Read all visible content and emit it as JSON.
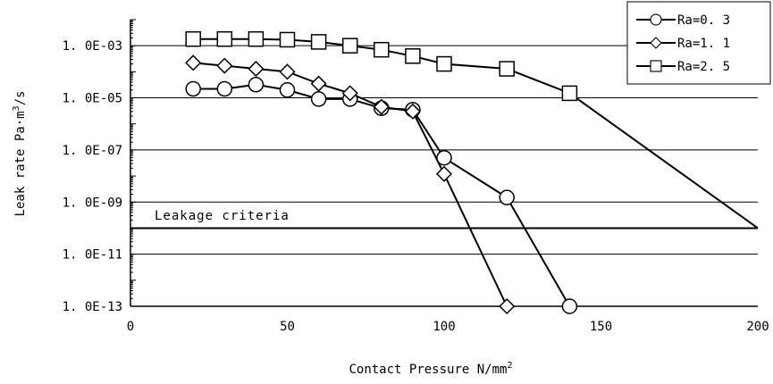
{
  "chart_data": {
    "type": "line",
    "title": "",
    "xlabel": "Contact Pressure N/mm",
    "xlabel_sup": "2",
    "ylabel": "Leak rate Pa·m",
    "ylabel_sup": "3",
    "ylabel_suffix": "/s",
    "y_scale": "log",
    "xlim": [
      0,
      200
    ],
    "ylim": [
      1e-13,
      0.01
    ],
    "x_ticks": [
      0,
      50,
      100,
      150,
      200
    ],
    "x_tick_labels": [
      "0",
      "50",
      "100",
      "150",
      "200"
    ],
    "y_ticks": [
      0.001,
      1e-05,
      1e-07,
      1e-09,
      1e-11,
      1e-13
    ],
    "y_tick_labels": [
      "1. 0E-03",
      "1. 0E-05",
      "1. 0E-07",
      "1. 0E-09",
      "1. 0E-11",
      "1. 0E-13"
    ],
    "grid": "horizontal at y ticks",
    "legend_position": "top-right",
    "series": [
      {
        "name": "Ra=0. 3",
        "marker": "circle",
        "x": [
          20,
          30,
          40,
          50,
          60,
          70,
          80,
          90,
          100,
          120,
          140
        ],
        "y": [
          2.2e-05,
          2.2e-05,
          3.2e-05,
          2e-05,
          9e-06,
          9e-06,
          4e-06,
          3.5e-06,
          5e-08,
          1.5e-09,
          1e-13
        ]
      },
      {
        "name": "Ra=1. 1",
        "marker": "diamond",
        "x": [
          20,
          30,
          40,
          50,
          60,
          70,
          80,
          90,
          100,
          120
        ],
        "y": [
          0.00022,
          0.00017,
          0.00013,
          0.0001,
          3.5e-05,
          1.5e-05,
          4.5e-06,
          3e-06,
          1.2e-08,
          1e-13
        ]
      },
      {
        "name": "Ra=2. 5",
        "marker": "square",
        "x": [
          20,
          30,
          40,
          50,
          60,
          70,
          80,
          90,
          100,
          120,
          140,
          200
        ],
        "y": [
          0.0018,
          0.0018,
          0.0018,
          0.0017,
          0.0014,
          0.001,
          0.0007,
          0.0004,
          0.0002,
          0.00013,
          1.5e-05,
          1e-10
        ]
      }
    ],
    "reference_line": {
      "label": "Leakage criteria",
      "y": 1e-10
    }
  }
}
